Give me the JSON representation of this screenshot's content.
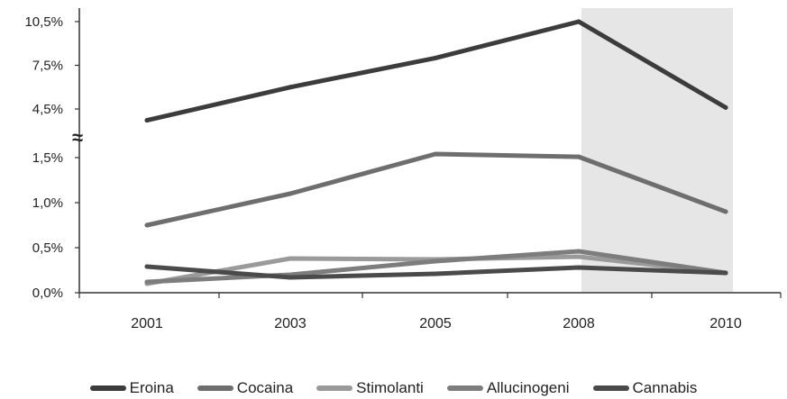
{
  "chart_data": {
    "type": "line",
    "categories": [
      "2001",
      "2003",
      "2005",
      "2008",
      "2010"
    ],
    "y_tick_labels_lower": [
      "0,0%",
      "0,5%",
      "1,0%",
      "1,5%"
    ],
    "y_tick_labels_upper": [
      "4,5%",
      "7,5%",
      "10,5%"
    ],
    "axis_break_symbol": "≈",
    "y_lower_range": [
      0,
      1.5
    ],
    "y_upper_range": [
      4.5,
      10.5
    ],
    "highlight_category": "2008-2010 shaded band",
    "grid": false,
    "legend_position": "bottom",
    "series": [
      {
        "name": "Eroina",
        "color": "#3c3c3c",
        "values": [
          3.8,
          6.0,
          8.0,
          10.5,
          4.6
        ]
      },
      {
        "name": "Cocaina",
        "color": "#6e6e6e",
        "values": [
          0.75,
          1.1,
          1.72,
          1.55,
          0.9
        ]
      },
      {
        "name": "Stimolanti",
        "color": "#9a9a9a",
        "values": [
          0.1,
          0.38,
          0.37,
          0.4,
          0.22
        ]
      },
      {
        "name": "Allucinogeni",
        "color": "#7d7d7d",
        "values": [
          0.12,
          0.2,
          0.35,
          0.46,
          0.22
        ]
      },
      {
        "name": "Cannabis",
        "color": "#4a4a4a",
        "values": [
          0.29,
          0.17,
          0.21,
          0.28,
          0.22
        ]
      }
    ]
  }
}
